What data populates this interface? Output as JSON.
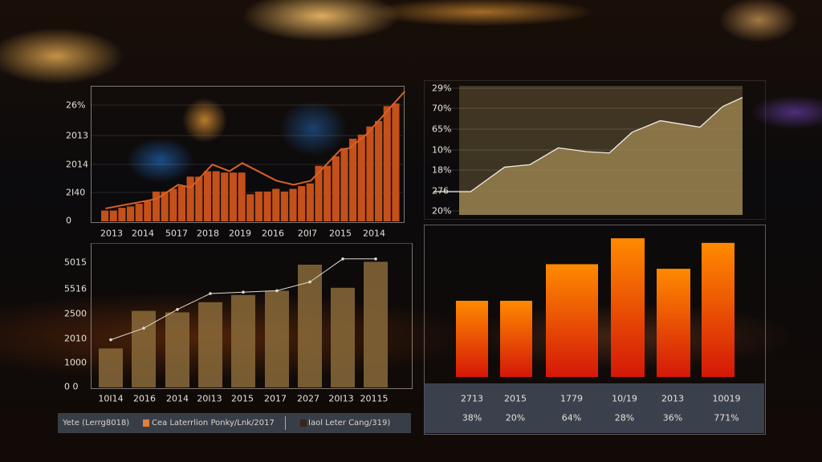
{
  "chart_data": [
    {
      "type": "bar",
      "title": "",
      "y_tick_labels": [
        "26%",
        "2013",
        "2014",
        "2I40",
        "0"
      ],
      "x_tick_labels": [
        "2013",
        "2014",
        "5017",
        "2018",
        "2019",
        "2016",
        "20I7",
        "2015",
        "2014"
      ],
      "ylim": [
        0,
        100
      ],
      "values": [
        8,
        8,
        10,
        11,
        13,
        15,
        22,
        22,
        24,
        26,
        33,
        33,
        37,
        37,
        36,
        36,
        36,
        20,
        22,
        22,
        24,
        22,
        24,
        26,
        28,
        41,
        41,
        48,
        54,
        61,
        64,
        70,
        74,
        85,
        87
      ],
      "line": [
        [
          0,
          9.5
        ],
        [
          6,
          16.6
        ],
        [
          8.5,
          27
        ],
        [
          10,
          25
        ],
        [
          12.5,
          42
        ],
        [
          14.5,
          37
        ],
        [
          16,
          43
        ],
        [
          20,
          30
        ],
        [
          22,
          27
        ],
        [
          24,
          30
        ],
        [
          26,
          43
        ],
        [
          27.5,
          53
        ],
        [
          28.5,
          54
        ],
        [
          30.5,
          64
        ],
        [
          35,
          96
        ]
      ],
      "bar_color": "#c4501a",
      "line_color": "#d9602a"
    },
    {
      "type": "bar",
      "title": "",
      "y_tick_labels": [
        "5015",
        "5516",
        "2500",
        "2010",
        "1000",
        "0 0"
      ],
      "x_tick_labels": [
        "10I14",
        "2016",
        "2014",
        "20I13",
        "2015",
        "2017",
        "2027",
        "20I13",
        "20115"
      ],
      "ylim": [
        0,
        100
      ],
      "values": [
        27,
        53,
        52,
        59,
        64,
        67,
        85,
        69,
        87
      ],
      "line": [
        33,
        41,
        54,
        65,
        66,
        67,
        73,
        89,
        89
      ],
      "bar_color": "#8a6a3a",
      "line_color": "#e0dcd0",
      "legend": [
        {
          "label": "Yete (Lerrg8018)",
          "color": ""
        },
        {
          "label": "Cea Laterrlion Ponky/Lnk/2017",
          "color": "#e0803a"
        },
        {
          "label": "Iaol Leter Cang/319)",
          "color": "#3a2418"
        }
      ]
    },
    {
      "type": "area",
      "title": "",
      "y_tick_labels": [
        "29%",
        "70%",
        "65%",
        "10%",
        "18%",
        "276",
        "20%"
      ],
      "xlim": [
        0,
        100
      ],
      "ylim": [
        0,
        100
      ],
      "points": [
        [
          0,
          18
        ],
        [
          4,
          18
        ],
        [
          16,
          37
        ],
        [
          25,
          39
        ],
        [
          35,
          52
        ],
        [
          45,
          49
        ],
        [
          53,
          48
        ],
        [
          61,
          64
        ],
        [
          71,
          73
        ],
        [
          85,
          68
        ],
        [
          93,
          84
        ],
        [
          100,
          91
        ]
      ],
      "fill_color": "#9c8450",
      "line_color": "#f0ece0"
    },
    {
      "type": "bar",
      "title": "",
      "ylim": [
        0,
        100
      ],
      "values": [
        50,
        50,
        74,
        91,
        71,
        88
      ],
      "categories": [
        "2713",
        "2015",
        "1779",
        "10/19",
        "2013",
        "10019"
      ],
      "percent_labels": [
        "38%",
        "20%",
        "64%",
        "28%",
        "36%",
        "771%"
      ],
      "gradient": [
        "#ff8a00",
        "#d41808"
      ]
    }
  ]
}
